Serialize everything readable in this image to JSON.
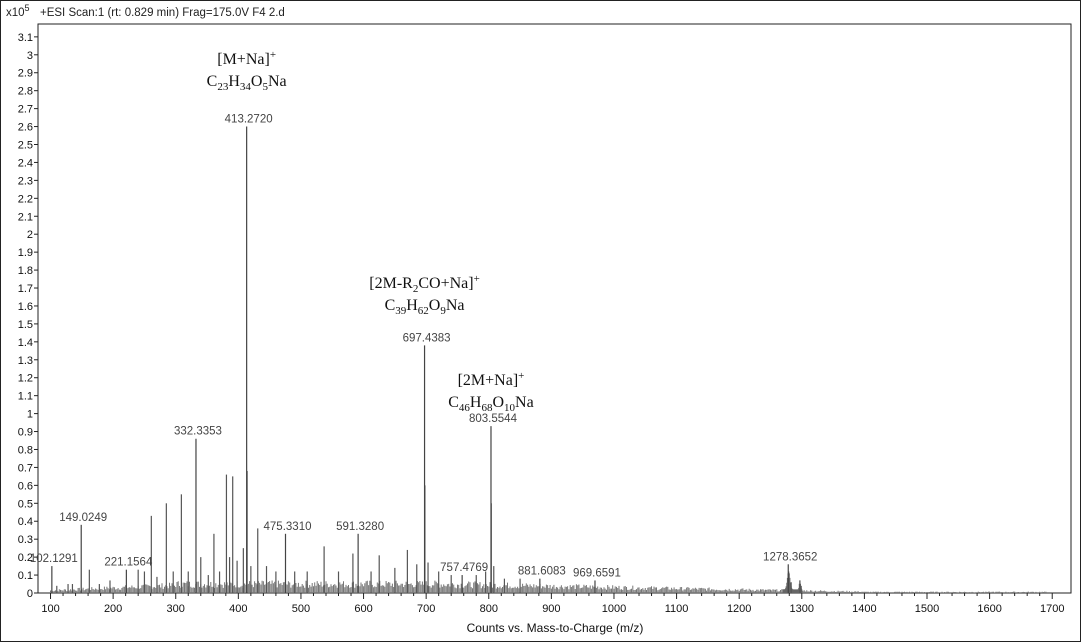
{
  "chart_data": {
    "type": "bar",
    "header": "+ESI Scan:1 (rt: 0.829 min) Frag=175.0V F4 2.d",
    "y_multiplier": "x10",
    "y_multiplier_exp": "5",
    "xlabel": "Counts vs. Mass-to-Charge (m/z)",
    "ylabel": "",
    "xlim": [
      80,
      1730
    ],
    "ylim": [
      0,
      3.15
    ],
    "x_ticks": [
      100,
      200,
      300,
      400,
      500,
      600,
      700,
      800,
      900,
      1000,
      1100,
      1200,
      1300,
      1400,
      1500,
      1600,
      1700
    ],
    "y_ticks": [
      0,
      0.1,
      0.2,
      0.3,
      0.4,
      0.5,
      0.6,
      0.7,
      0.8,
      0.9,
      1,
      1.1,
      1.2,
      1.3,
      1.4,
      1.5,
      1.6,
      1.7,
      1.8,
      1.9,
      2,
      2.1,
      2.2,
      2.3,
      2.4,
      2.5,
      2.6,
      2.7,
      2.8,
      2.9,
      3,
      3.1
    ],
    "y_tick_labels": [
      "0",
      "0.1",
      "0.2",
      "0.3",
      "0.4",
      "0.5",
      "0.6",
      "0.7",
      "0.8",
      "0.9",
      "1",
      "1.1",
      "1.2",
      "1.3",
      "1.4",
      "1.5",
      "1.6",
      "1.7",
      "1.8",
      "1.9",
      "2",
      "2.1",
      "2.2",
      "2.3",
      "2.4",
      "2.5",
      "2.6",
      "2.7",
      "2.8",
      "2.9",
      "3",
      "3.1"
    ],
    "labeled_peaks": [
      {
        "mz": 102.1291,
        "intensity": 0.15,
        "label": "102.1291"
      },
      {
        "mz": 149.0249,
        "intensity": 0.38,
        "label": "149.0249"
      },
      {
        "mz": 221.1564,
        "intensity": 0.13,
        "label": "221.1564"
      },
      {
        "mz": 332.3353,
        "intensity": 0.86,
        "label": "332.3353"
      },
      {
        "mz": 413.272,
        "intensity": 2.6,
        "label": "413.2720"
      },
      {
        "mz": 475.331,
        "intensity": 0.33,
        "label": "475.3310"
      },
      {
        "mz": 591.328,
        "intensity": 0.33,
        "label": "591.3280"
      },
      {
        "mz": 697.4383,
        "intensity": 1.38,
        "label": "697.4383"
      },
      {
        "mz": 757.4769,
        "intensity": 0.1,
        "label": "757.4769"
      },
      {
        "mz": 803.5544,
        "intensity": 0.93,
        "label": "803.5544"
      },
      {
        "mz": 881.6083,
        "intensity": 0.08,
        "label": "881.6083"
      },
      {
        "mz": 969.6591,
        "intensity": 0.07,
        "label": "969.6591"
      },
      {
        "mz": 1278.3652,
        "intensity": 0.16,
        "label": "1278.3652"
      }
    ],
    "peaks": [
      {
        "mz": 110,
        "intensity": 0.04
      },
      {
        "mz": 128,
        "intensity": 0.05
      },
      {
        "mz": 135,
        "intensity": 0.05
      },
      {
        "mz": 162,
        "intensity": 0.13
      },
      {
        "mz": 178,
        "intensity": 0.05
      },
      {
        "mz": 195,
        "intensity": 0.07
      },
      {
        "mz": 240,
        "intensity": 0.13
      },
      {
        "mz": 250,
        "intensity": 0.12
      },
      {
        "mz": 261,
        "intensity": 0.43
      },
      {
        "mz": 270,
        "intensity": 0.09
      },
      {
        "mz": 285,
        "intensity": 0.5
      },
      {
        "mz": 296,
        "intensity": 0.12
      },
      {
        "mz": 309,
        "intensity": 0.55
      },
      {
        "mz": 320,
        "intensity": 0.12
      },
      {
        "mz": 340,
        "intensity": 0.2
      },
      {
        "mz": 352,
        "intensity": 0.1
      },
      {
        "mz": 361,
        "intensity": 0.33
      },
      {
        "mz": 370,
        "intensity": 0.12
      },
      {
        "mz": 381,
        "intensity": 0.66
      },
      {
        "mz": 386,
        "intensity": 0.2
      },
      {
        "mz": 391,
        "intensity": 0.65
      },
      {
        "mz": 398,
        "intensity": 0.18
      },
      {
        "mz": 408,
        "intensity": 0.25
      },
      {
        "mz": 414,
        "intensity": 0.68
      },
      {
        "mz": 420,
        "intensity": 0.15
      },
      {
        "mz": 431,
        "intensity": 0.36
      },
      {
        "mz": 445,
        "intensity": 0.15
      },
      {
        "mz": 460,
        "intensity": 0.12
      },
      {
        "mz": 490,
        "intensity": 0.12
      },
      {
        "mz": 510,
        "intensity": 0.12
      },
      {
        "mz": 537,
        "intensity": 0.26
      },
      {
        "mz": 560,
        "intensity": 0.12
      },
      {
        "mz": 583,
        "intensity": 0.22
      },
      {
        "mz": 612,
        "intensity": 0.12
      },
      {
        "mz": 625,
        "intensity": 0.21
      },
      {
        "mz": 650,
        "intensity": 0.14
      },
      {
        "mz": 670,
        "intensity": 0.24
      },
      {
        "mz": 685,
        "intensity": 0.16
      },
      {
        "mz": 698,
        "intensity": 0.6
      },
      {
        "mz": 703,
        "intensity": 0.17
      },
      {
        "mz": 720,
        "intensity": 0.12
      },
      {
        "mz": 740,
        "intensity": 0.1
      },
      {
        "mz": 780,
        "intensity": 0.1
      },
      {
        "mz": 795,
        "intensity": 0.12
      },
      {
        "mz": 804,
        "intensity": 0.5
      },
      {
        "mz": 808,
        "intensity": 0.15
      },
      {
        "mz": 825,
        "intensity": 0.08
      },
      {
        "mz": 850,
        "intensity": 0.08
      },
      {
        "mz": 1279,
        "intensity": 0.12
      },
      {
        "mz": 1283,
        "intensity": 0.06
      },
      {
        "mz": 1297,
        "intensity": 0.07
      },
      {
        "mz": 1299,
        "intensity": 0.04
      }
    ],
    "annotations": [
      {
        "ion": "[M+Na]",
        "charge": "+",
        "formula": [
          [
            "C",
            ""
          ],
          [
            "23",
            "sub"
          ],
          [
            "H",
            ""
          ],
          [
            "34",
            "sub"
          ],
          [
            "O",
            ""
          ],
          [
            "5",
            "sub"
          ],
          [
            "Na",
            ""
          ]
        ],
        "mz": 413.272,
        "intensity": 2.95
      },
      {
        "ion_parts": [
          [
            "[2M-R",
            ""
          ],
          [
            "2",
            "sub"
          ],
          [
            "CO+Na]",
            ""
          ],
          [
            "+",
            "sup"
          ]
        ],
        "formula": [
          [
            "C",
            ""
          ],
          [
            "39",
            "sub"
          ],
          [
            "H",
            ""
          ],
          [
            "62",
            "sub"
          ],
          [
            "O",
            ""
          ],
          [
            "9",
            "sub"
          ],
          [
            "Na",
            ""
          ]
        ],
        "mz": 697.4383,
        "intensity": 1.7
      },
      {
        "ion": "[2M+Na]",
        "charge": "+",
        "formula": [
          [
            "C",
            ""
          ],
          [
            "46",
            "sub"
          ],
          [
            "H",
            ""
          ],
          [
            "68",
            "sub"
          ],
          [
            "O",
            ""
          ],
          [
            "10",
            "sub"
          ],
          [
            "Na",
            ""
          ]
        ],
        "mz": 803.5544,
        "intensity": 1.16
      }
    ]
  }
}
